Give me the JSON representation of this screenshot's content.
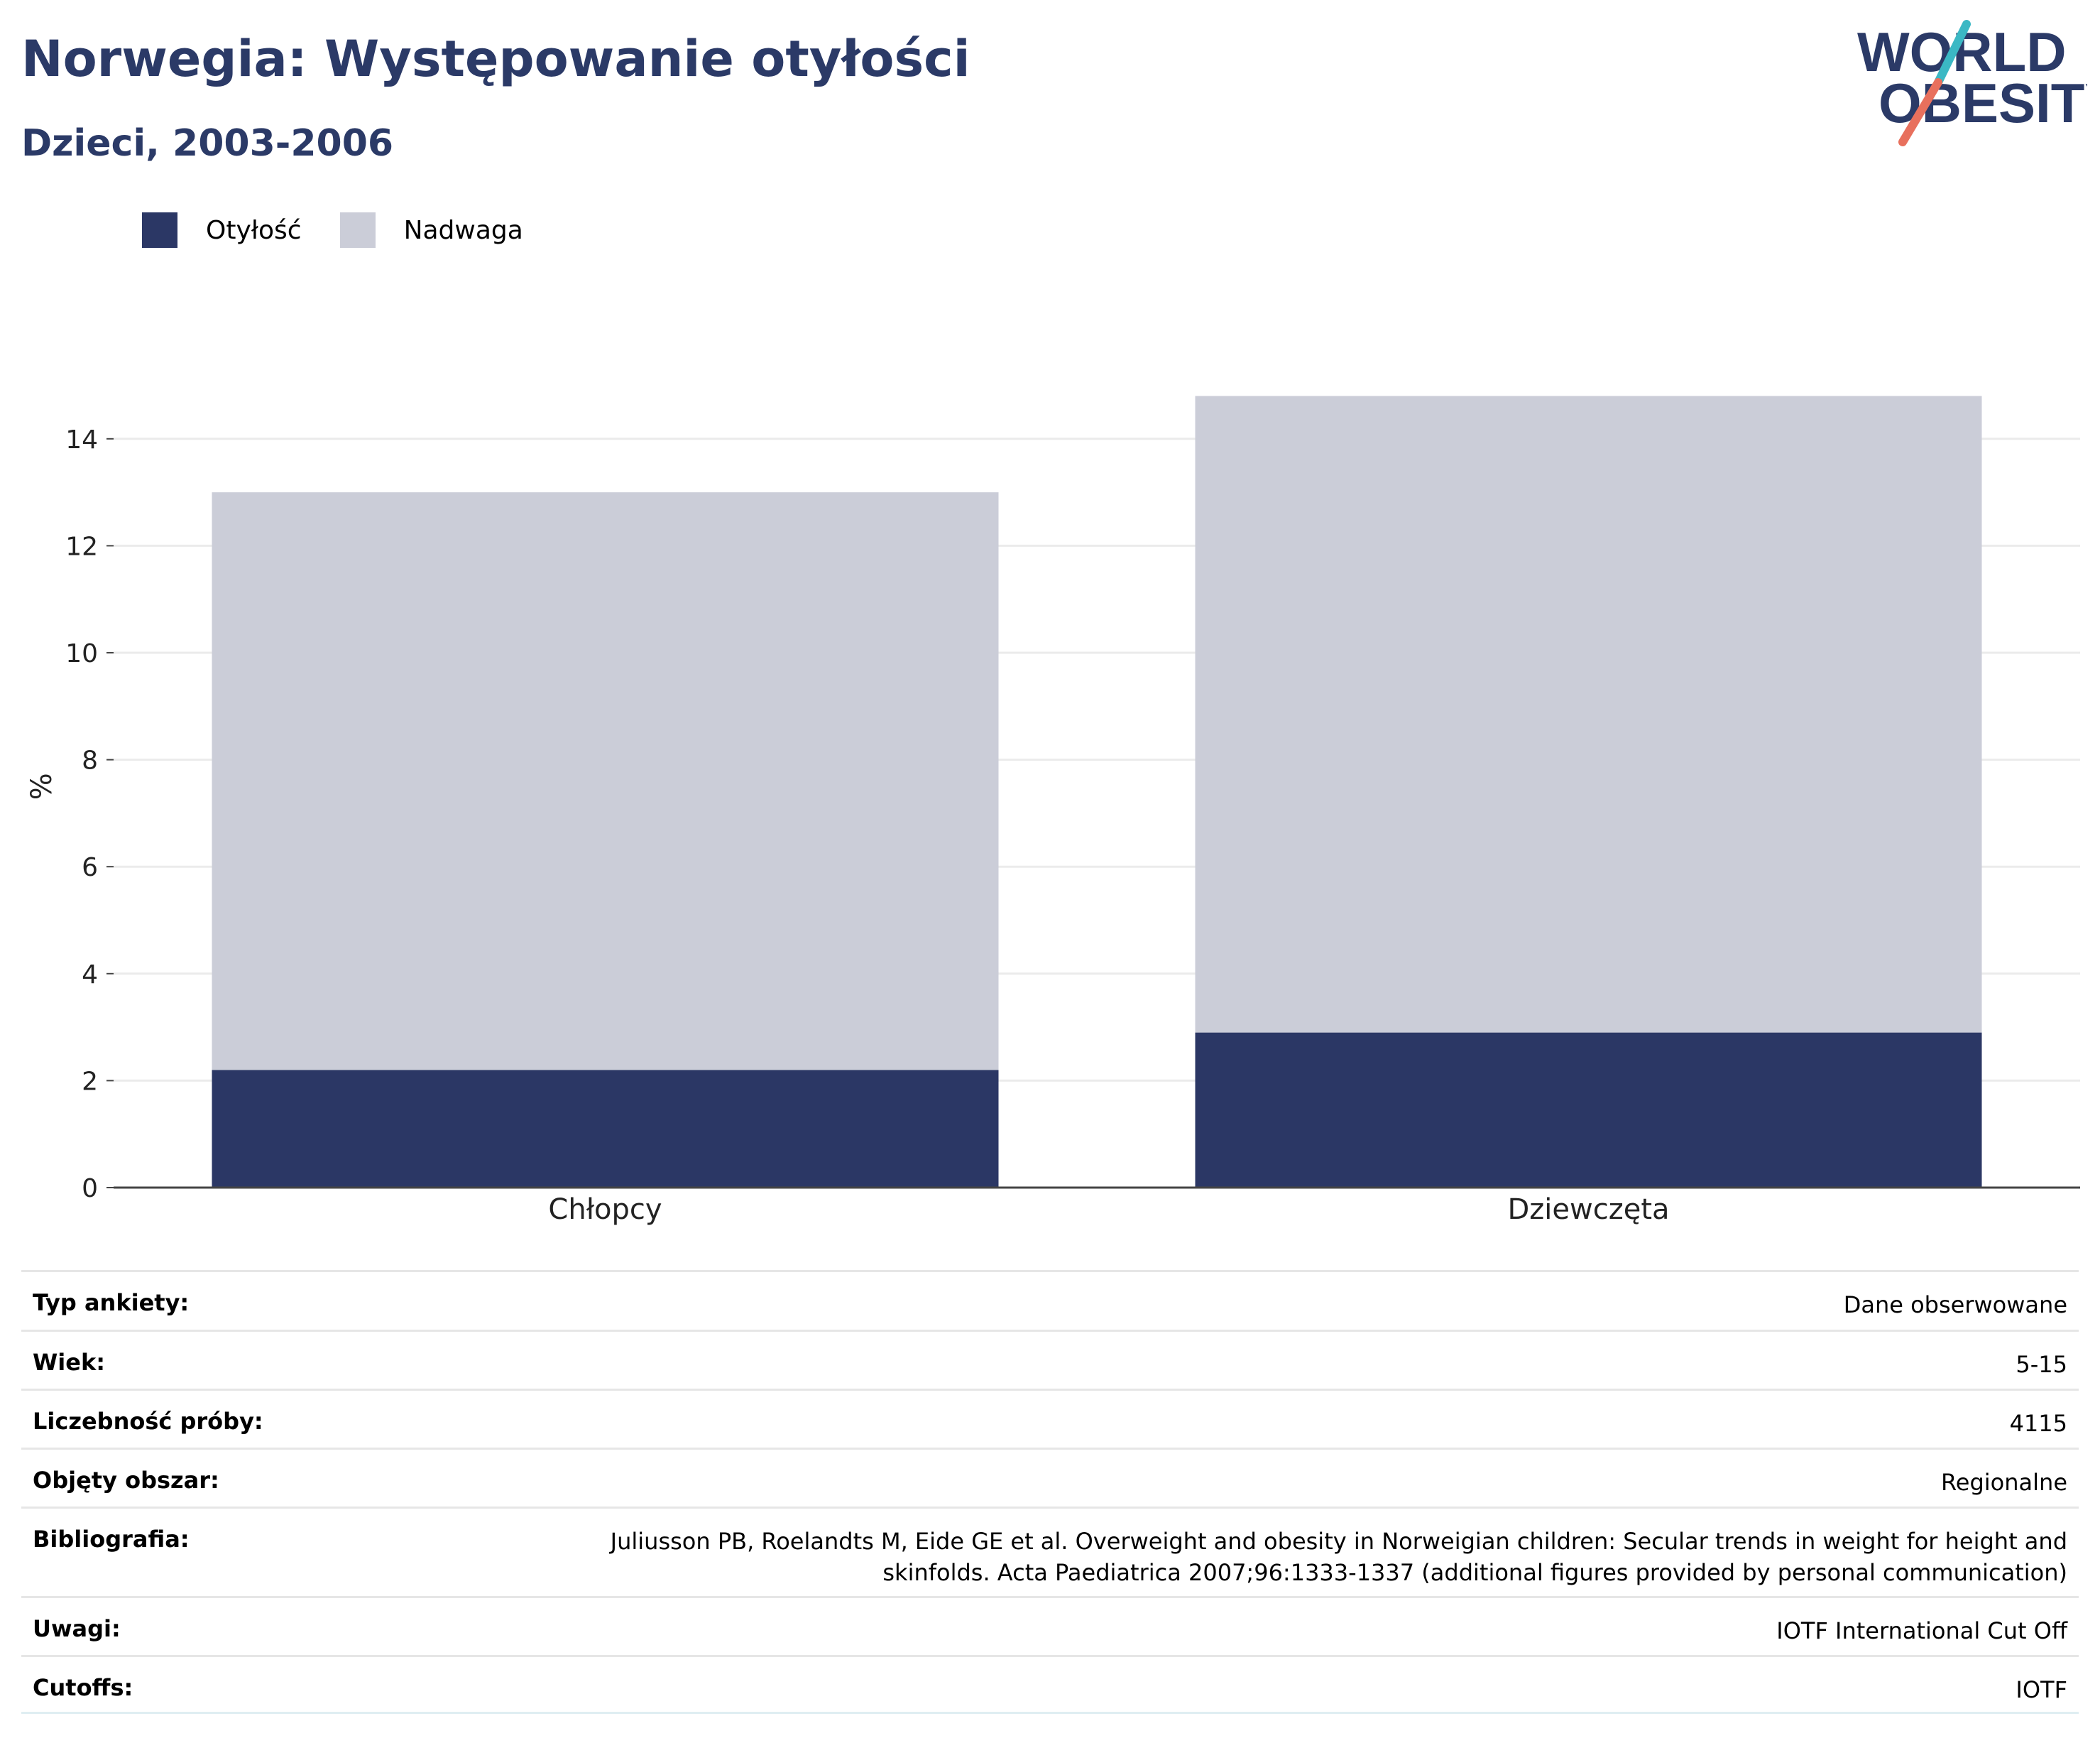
{
  "header": {
    "title": "Norwegia: Występowanie otyłości",
    "subtitle": "Dzieci, 2003-2006"
  },
  "logo": {
    "line1": "WORLD",
    "line2": "OBESITY",
    "colors": {
      "text": "#2b3a67",
      "slash_top": "#3bb8c4",
      "slash_bottom": "#e8705d"
    }
  },
  "legend": [
    {
      "label": "Otyłość",
      "color": "#2b3765"
    },
    {
      "label": "Nadwaga",
      "color": "#cbcdd8"
    }
  ],
  "chart_data": {
    "type": "bar",
    "stacked": true,
    "categories": [
      "Chłopcy",
      "Dziewczęta"
    ],
    "series": [
      {
        "name": "Otyłość",
        "color": "#2b3765",
        "values": [
          2.2,
          2.9
        ]
      },
      {
        "name": "Nadwaga",
        "color": "#cbcdd8",
        "values": [
          10.8,
          11.9
        ]
      }
    ],
    "ylabel": "%",
    "ylim": [
      0,
      15
    ],
    "yticks": [
      0,
      2,
      4,
      6,
      8,
      10,
      12,
      14
    ],
    "grid": true,
    "legend_position": "top-left"
  },
  "meta": [
    {
      "key": "Typ ankiety:",
      "value": "Dane obserwowane"
    },
    {
      "key": "Wiek:",
      "value": "5-15"
    },
    {
      "key": "Liczebność próby:",
      "value": "4115"
    },
    {
      "key": "Objęty obszar:",
      "value": "Regionalne"
    },
    {
      "key": "Bibliografia:",
      "value": "Juliusson PB, Roelandts M, Eide GE et al. Overweight and obesity in Norweigian children: Secular trends in weight for height and skinfolds. Acta Paediatrica 2007;96:1333-1337 (additional figures provided by personal communication)"
    },
    {
      "key": "Uwagi:",
      "value": "IOTF International Cut Off"
    },
    {
      "key": "Cutoffs:",
      "value": "IOTF"
    }
  ]
}
